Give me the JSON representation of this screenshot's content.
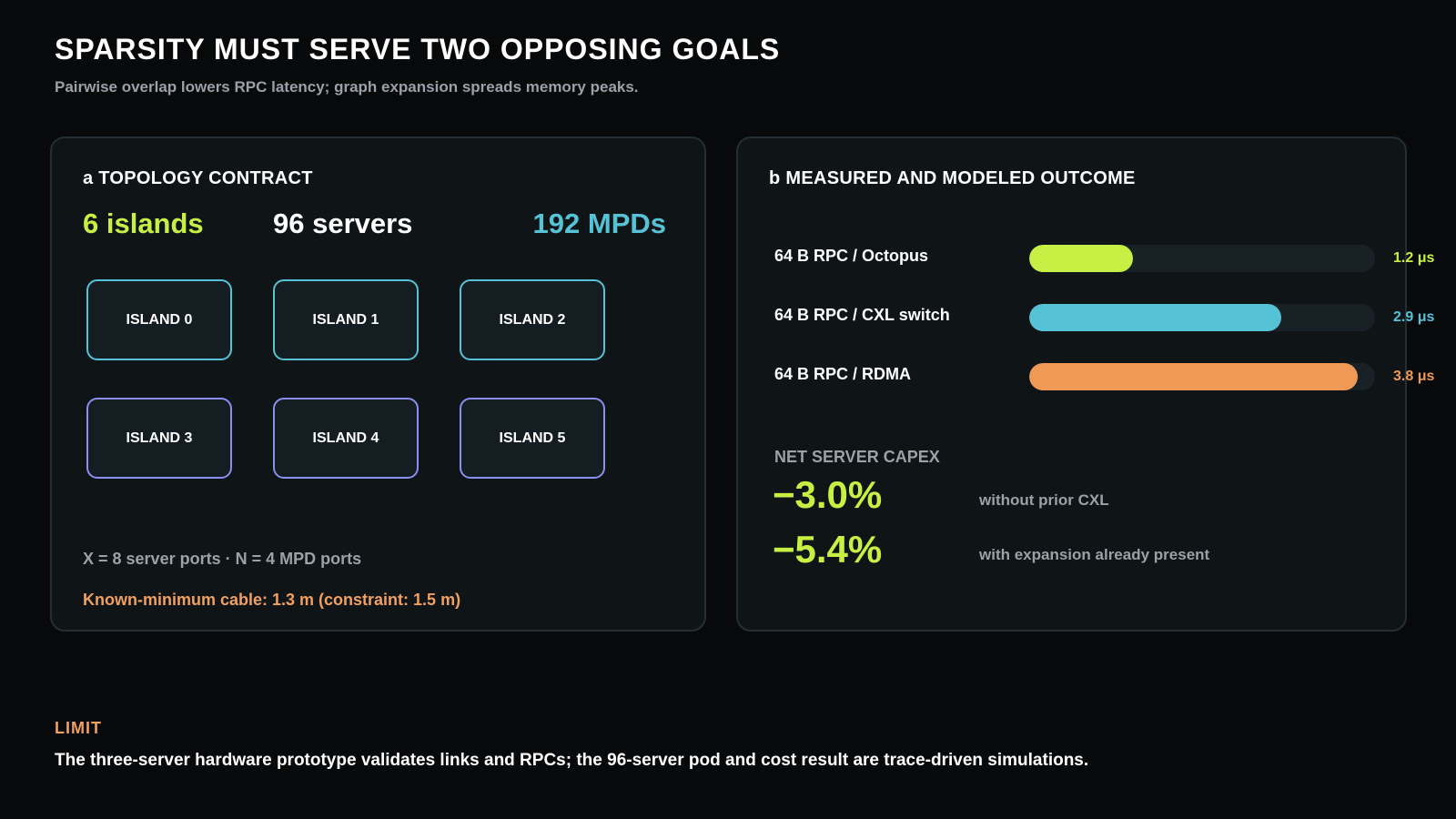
{
  "header": {
    "title": "SPARSITY MUST SERVE TWO OPPOSING GOALS",
    "subtitle": "Pairwise overlap lowers RPC latency; graph expansion spreads memory peaks."
  },
  "panel_a": {
    "heading": "a TOPOLOGY CONTRACT",
    "metrics": {
      "islands": "6 islands",
      "servers": "96 servers",
      "mpds": "192 MPDs"
    },
    "islands": [
      "ISLAND 0",
      "ISLAND 1",
      "ISLAND 2",
      "ISLAND 3",
      "ISLAND 4",
      "ISLAND 5"
    ],
    "ports_note": "X = 8 server ports · N = 4 MPD ports",
    "cable_note": "Known-minimum cable: 1.3 m (constraint: 1.5 m)"
  },
  "panel_b": {
    "heading": "b MEASURED AND MODELED OUTCOME",
    "bars": [
      {
        "label": "64 B RPC / Octopus",
        "value_text": "1.2 μs",
        "level": 0.3,
        "color": "#c8f044"
      },
      {
        "label": "64 B RPC / CXL switch",
        "value_text": "2.9 μs",
        "level": 0.73,
        "color": "#56c2d6"
      },
      {
        "label": "64 B RPC / RDMA",
        "value_text": "3.8 μs",
        "level": 0.95,
        "color": "#ee9a56"
      }
    ],
    "capex": {
      "label": "NET SERVER CAPEX",
      "rows": [
        {
          "value": "−3.0%",
          "desc": "without prior CXL"
        },
        {
          "value": "−5.4%",
          "desc": "with expansion already present"
        }
      ]
    }
  },
  "limit": {
    "label": "LIMIT",
    "text": "The three-server hardware prototype validates links and RPCs; the 96-server pod and cost result are trace-driven simulations."
  }
}
